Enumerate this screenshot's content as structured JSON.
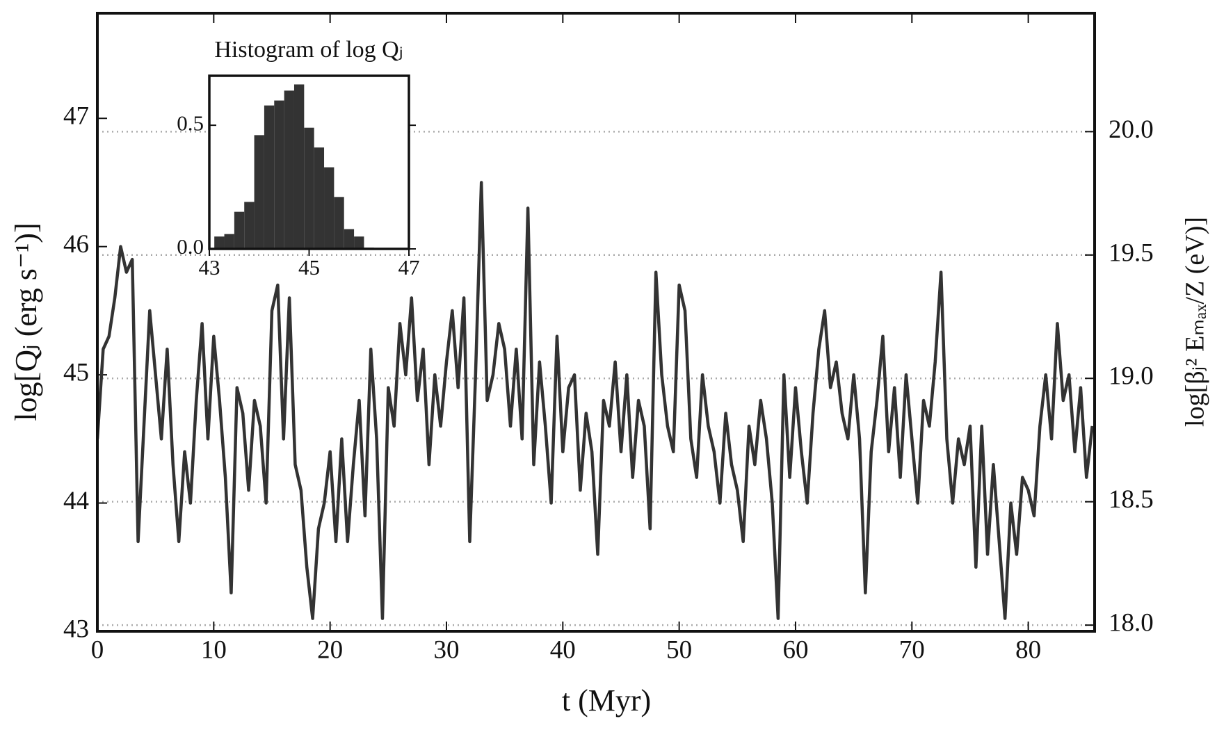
{
  "chart_data": [
    {
      "type": "line",
      "xlabel": "t (Myr)",
      "ylabel": "log[Qⱼ (erg s⁻¹)]",
      "y2label": "log[βⱼ² Eₘₐₓ/Z (eV)]",
      "xlim": [
        0,
        85.7
      ],
      "xticks": [
        0,
        10,
        20,
        30,
        40,
        50,
        60,
        70,
        80
      ],
      "ylim": [
        43,
        47.82
      ],
      "yticks": [
        43,
        44,
        45,
        46,
        47
      ],
      "y2lim": [
        17.975,
        20.48
      ],
      "y2ticks": [
        {
          "value": 18,
          "label": "18.0"
        },
        {
          "value": 18.5,
          "label": "18.5"
        },
        {
          "value": 19,
          "label": "19.0"
        },
        {
          "value": 19.5,
          "label": "19.5"
        },
        {
          "value": 20,
          "label": "20.0"
        }
      ],
      "grid": "y2",
      "color": "#333333",
      "x": [
        0,
        0.5,
        1,
        1.5,
        2,
        2.5,
        3,
        3.5,
        4,
        4.5,
        5,
        5.5,
        6,
        6.5,
        7,
        7.5,
        8,
        8.5,
        9,
        9.5,
        10,
        10.5,
        11,
        11.5,
        12,
        12.5,
        13,
        13.5,
        14,
        14.5,
        15,
        15.5,
        16,
        16.5,
        17,
        17.5,
        18,
        18.5,
        19,
        19.5,
        20,
        20.5,
        21,
        21.5,
        22,
        22.5,
        23,
        23.5,
        24,
        24.5,
        25,
        25.5,
        26,
        26.5,
        27,
        27.5,
        28,
        28.5,
        29,
        29.5,
        30,
        30.5,
        31,
        31.5,
        32,
        32.5,
        33,
        33.5,
        34,
        34.5,
        35,
        35.5,
        36,
        36.5,
        37,
        37.5,
        38,
        38.5,
        39,
        39.5,
        40,
        40.5,
        41,
        41.5,
        42,
        42.5,
        43,
        43.5,
        44,
        44.5,
        45,
        45.5,
        46,
        46.5,
        47,
        47.5,
        48,
        48.5,
        49,
        49.5,
        50,
        50.5,
        51,
        51.5,
        52,
        52.5,
        53,
        53.5,
        54,
        54.5,
        55,
        55.5,
        56,
        56.5,
        57,
        57.5,
        58,
        58.5,
        59,
        59.5,
        60,
        60.5,
        61,
        61.5,
        62,
        62.5,
        63,
        63.5,
        64,
        64.5,
        65,
        65.5,
        66,
        66.5,
        67,
        67.5,
        68,
        68.5,
        69,
        69.5,
        70,
        70.5,
        71,
        71.5,
        72,
        72.5,
        73,
        73.5,
        74,
        74.5,
        75,
        75.5,
        76,
        76.5,
        77,
        77.5,
        78,
        78.5,
        79,
        79.5,
        80,
        80.5,
        81,
        81.5,
        82,
        82.5,
        83,
        83.5,
        84,
        84.5,
        85,
        85.5
      ],
      "values": [
        44.5,
        45.2,
        45.3,
        45.6,
        46.0,
        45.8,
        45.9,
        43.7,
        44.6,
        45.5,
        45.0,
        44.5,
        45.2,
        44.3,
        43.7,
        44.4,
        44.0,
        44.8,
        45.4,
        44.5,
        45.3,
        44.8,
        44.2,
        43.3,
        44.9,
        44.7,
        44.1,
        44.8,
        44.6,
        44.0,
        45.5,
        45.7,
        44.5,
        45.6,
        44.3,
        44.1,
        43.5,
        43.1,
        43.8,
        44.0,
        44.4,
        43.7,
        44.5,
        43.7,
        44.3,
        44.8,
        43.9,
        45.2,
        44.5,
        43.1,
        44.9,
        44.6,
        45.4,
        45.0,
        45.6,
        44.8,
        45.2,
        44.3,
        45.0,
        44.6,
        45.1,
        45.5,
        44.9,
        45.6,
        43.7,
        45.0,
        46.5,
        44.8,
        45.0,
        45.4,
        45.2,
        44.6,
        45.2,
        44.5,
        46.3,
        44.3,
        45.1,
        44.6,
        44.0,
        45.3,
        44.4,
        44.9,
        45.0,
        44.1,
        44.7,
        44.4,
        43.6,
        44.8,
        44.6,
        45.1,
        44.4,
        45.0,
        44.2,
        44.8,
        44.6,
        43.8,
        45.8,
        45.0,
        44.6,
        44.4,
        45.7,
        45.5,
        44.5,
        44.2,
        45.0,
        44.6,
        44.4,
        44.0,
        44.7,
        44.3,
        44.1,
        43.7,
        44.6,
        44.3,
        44.8,
        44.5,
        44.0,
        43.1,
        45.0,
        44.2,
        44.9,
        44.4,
        44.0,
        44.7,
        45.2,
        45.5,
        44.9,
        45.1,
        44.7,
        44.5,
        45.0,
        44.5,
        43.3,
        44.4,
        44.8,
        45.3,
        44.4,
        44.9,
        44.2,
        45.0,
        44.5,
        44.0,
        44.8,
        44.6,
        45.1,
        45.8,
        44.5,
        44.0,
        44.5,
        44.3,
        44.6,
        43.5,
        44.6,
        43.6,
        44.3,
        43.7,
        43.1,
        44.0,
        43.6,
        44.2,
        44.1,
        43.9,
        44.6,
        45.0,
        44.5,
        45.4,
        44.8,
        45.0,
        44.4,
        44.9,
        44.2,
        44.6
      ]
    },
    {
      "type": "histogram",
      "title": "Histogram of log Qⱼ",
      "color": "#333333",
      "bins": [
        43.1,
        43.3,
        43.5,
        43.7,
        43.9,
        44.1,
        44.3,
        44.5,
        44.7,
        44.9,
        45.1,
        45.3,
        45.5,
        45.7,
        45.9,
        46.1,
        46.3,
        46.5,
        46.7,
        46.9,
        47.1
      ],
      "values": [
        0.05,
        0.06,
        0.15,
        0.19,
        0.46,
        0.58,
        0.6,
        0.64,
        0.665,
        0.49,
        0.41,
        0.33,
        0.21,
        0.08,
        0.05,
        0.005,
        0.003,
        0.003,
        0.002,
        0.002
      ],
      "xlim": [
        43,
        47
      ],
      "xticks": [
        43,
        45,
        47
      ],
      "ylim": [
        0,
        0.7
      ],
      "yticks": [
        {
          "value": 0,
          "label": "0.0"
        },
        {
          "value": 0.5,
          "label": "0.5"
        }
      ]
    }
  ]
}
